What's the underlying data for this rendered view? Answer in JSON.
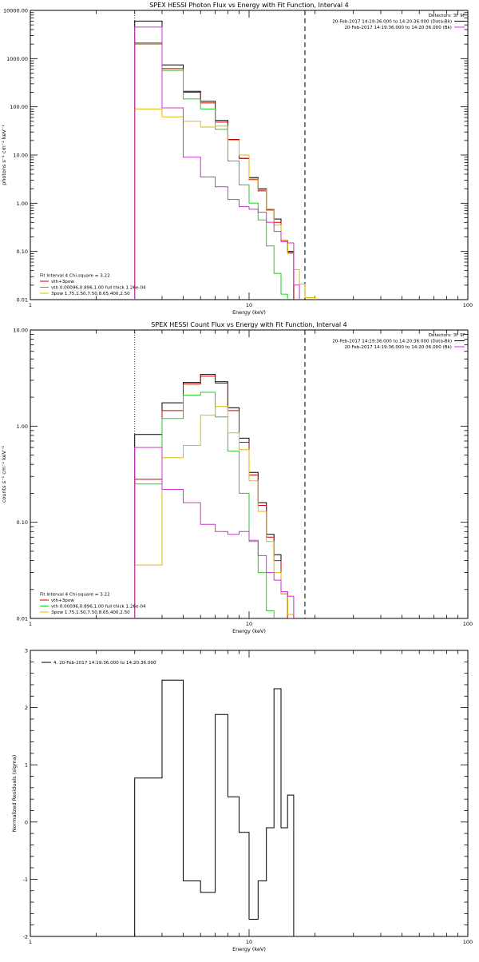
{
  "colors": {
    "axis": "#000000",
    "data": "#000000",
    "total_fit": "#cc0000",
    "vth": "#22cc22",
    "bpow": "#ddbb00",
    "background": "#cc33cc",
    "residual": "#000000"
  },
  "chart_data": [
    {
      "type": "line",
      "title": "SPEX HESSI Photon Flux vs Energy with Fit Function, Interval 4",
      "xlabel": "Energy (keV)",
      "ylabel": "photons s⁻¹ cm⁻² keV⁻¹",
      "xscale": "log",
      "yscale": "log",
      "xlim": [
        1,
        100
      ],
      "ylim": [
        0.01,
        10000
      ],
      "xticks": [
        {
          "v": 1,
          "label": "1"
        },
        {
          "v": 10,
          "label": "10"
        },
        {
          "v": 100,
          "label": "100"
        }
      ],
      "yticks": [
        {
          "v": 0.01,
          "label": "0.01"
        },
        {
          "v": 0.1,
          "label": "0.10"
        },
        {
          "v": 1,
          "label": "1.00"
        },
        {
          "v": 10,
          "label": "10.00"
        },
        {
          "v": 100,
          "label": "100.00"
        },
        {
          "v": 1000,
          "label": "1000.00"
        },
        {
          "v": 10000,
          "label": "10000.00"
        }
      ],
      "vlines": [
        {
          "x": 3.0,
          "style": "dotted"
        },
        {
          "x": 18.0,
          "style": "dashed"
        }
      ],
      "edges": [
        3,
        4,
        5,
        6,
        7,
        8,
        9,
        10,
        11,
        12,
        13,
        14,
        15,
        16,
        17,
        18,
        20,
        22,
        25
      ],
      "series": [
        {
          "key": "data",
          "color_key": "data",
          "values": [
            6000,
            740,
            210,
            130,
            52,
            21,
            8.5,
            3.4,
            2.0,
            0.75,
            0.47,
            0.17,
            0.1,
            null,
            null,
            null,
            null,
            null
          ]
        },
        {
          "key": "total",
          "color_key": "total_fit",
          "values": [
            2100,
            620,
            200,
            120,
            48,
            21,
            8.5,
            3.1,
            1.8,
            0.72,
            0.4,
            0.17,
            0.095,
            null,
            null,
            null,
            null,
            null
          ]
        },
        {
          "key": "vth",
          "color_key": "vth",
          "values": [
            2000,
            570,
            145,
            90,
            34,
            7.5,
            2.4,
            1.0,
            0.45,
            0.13,
            0.035,
            0.013,
            null,
            null,
            null,
            null,
            null,
            null
          ]
        },
        {
          "key": "bpow",
          "color_key": "bpow",
          "values": [
            90,
            62,
            50,
            38,
            40,
            20,
            10,
            3.2,
            1.9,
            0.75,
            0.35,
            0.17,
            0.09,
            0.042,
            0.021,
            0.011,
            null,
            null
          ]
        },
        {
          "key": "bk",
          "color_key": "background",
          "values": [
            4500,
            95,
            9,
            3.5,
            2.2,
            1.2,
            0.85,
            0.75,
            0.65,
            0.4,
            0.26,
            0.16,
            0.15,
            0.02,
            null,
            null,
            null,
            null
          ]
        }
      ],
      "legend_right": [
        {
          "text": "Detectors: 3F 9F",
          "color_key": null
        },
        {
          "text": "20-Feb-2017 14:19:36.000 to 14:20:36.000 (Data-Bk)",
          "color_key": "data"
        },
        {
          "text": "20-Feb-2017 14:19:36.000 to 14:20:36.000 (Bk)",
          "color_key": "background"
        }
      ],
      "legend_left": [
        {
          "text": "Fit Interval 4   Chi-square = 3.22",
          "color_key": null
        },
        {
          "text": "vth+3pow",
          "color_key": "total_fit"
        },
        {
          "text": "vth 0.00096,0.896,1.00  full thick 1.26e-04",
          "color_key": "vth"
        },
        {
          "text": "3pow 1.75,1.50,7.50,8.65,400,2.50",
          "color_key": "bpow"
        }
      ]
    },
    {
      "type": "line",
      "title": "SPEX HESSI Count Flux vs Energy with Fit Function, Interval 4",
      "xlabel": "Energy (keV)",
      "ylabel": "counts s⁻¹ cm⁻² keV⁻¹",
      "xscale": "log",
      "yscale": "log",
      "xlim": [
        1,
        100
      ],
      "ylim": [
        0.01,
        10
      ],
      "xticks": [
        {
          "v": 1,
          "label": "1"
        },
        {
          "v": 10,
          "label": "10"
        },
        {
          "v": 100,
          "label": "100"
        }
      ],
      "yticks": [
        {
          "v": 0.01,
          "label": "0.01"
        },
        {
          "v": 0.1,
          "label": "0.10"
        },
        {
          "v": 1,
          "label": "1.00"
        },
        {
          "v": 10,
          "label": "10.00"
        }
      ],
      "vlines": [
        {
          "x": 3.0,
          "style": "dotted"
        },
        {
          "x": 18.0,
          "style": "dashed"
        }
      ],
      "edges": [
        3,
        4,
        5,
        6,
        7,
        8,
        9,
        10,
        11,
        12,
        13,
        14,
        15,
        16,
        17,
        18
      ],
      "series": [
        {
          "key": "data",
          "color_key": "data",
          "values": [
            0.82,
            1.75,
            2.85,
            3.45,
            2.9,
            1.55,
            0.75,
            0.33,
            0.16,
            0.075,
            0.046,
            0.019,
            0.011,
            null,
            null
          ]
        },
        {
          "key": "total",
          "color_key": "total_fit",
          "values": [
            0.28,
            1.45,
            2.75,
            3.3,
            2.8,
            1.45,
            0.68,
            0.31,
            0.15,
            0.07,
            0.04,
            0.018,
            0.01,
            null,
            null
          ]
        },
        {
          "key": "vth",
          "color_key": "vth",
          "values": [
            0.25,
            1.2,
            2.1,
            2.25,
            1.25,
            0.55,
            0.2,
            0.063,
            0.03,
            0.012,
            null,
            null,
            null,
            null,
            null
          ]
        },
        {
          "key": "bpow",
          "color_key": "bpow",
          "values": [
            0.036,
            0.47,
            0.63,
            1.3,
            1.6,
            0.85,
            0.57,
            0.27,
            0.13,
            0.063,
            0.03,
            0.018,
            0.011,
            null,
            null
          ]
        },
        {
          "key": "bk",
          "color_key": "background",
          "values": [
            0.6,
            0.22,
            0.16,
            0.095,
            0.08,
            0.075,
            0.08,
            0.065,
            0.045,
            0.03,
            0.025,
            0.019,
            0.017,
            null,
            null
          ]
        }
      ],
      "legend_right": [
        {
          "text": "Detectors: 3F 9F",
          "color_key": null
        },
        {
          "text": "20-Feb-2017 14:19:36.000 to 14:20:36.000 (Data-Bk)",
          "color_key": "data"
        },
        {
          "text": "20-Feb-2017 14:19:36.000 to 14:20:36.000 (Bk)",
          "color_key": "background"
        }
      ],
      "legend_left": [
        {
          "text": "Fit Interval 4   Chi-square = 3.22",
          "color_key": null
        },
        {
          "text": "vth+3pow",
          "color_key": "total_fit"
        },
        {
          "text": "vth 0.00096,0.896,1.00  full thick 1.26e-04",
          "color_key": "vth"
        },
        {
          "text": "3pow 1.75,1.50,7.50,8.65,400,2.50",
          "color_key": "bpow"
        }
      ]
    },
    {
      "type": "line",
      "title": "",
      "xlabel": "Energy (keV)",
      "ylabel": "Normalized Residuals (sigma)",
      "xscale": "log",
      "yscale": "linear",
      "xlim": [
        1,
        100
      ],
      "ylim": [
        -2,
        3
      ],
      "xticks": [
        {
          "v": 1,
          "label": "1"
        },
        {
          "v": 10,
          "label": "10"
        },
        {
          "v": 100,
          "label": "100"
        }
      ],
      "yticks": [
        {
          "v": -2,
          "label": "-2"
        },
        {
          "v": -1,
          "label": "-1"
        },
        {
          "v": 0,
          "label": "0"
        },
        {
          "v": 1,
          "label": "1"
        },
        {
          "v": 2,
          "label": "2"
        },
        {
          "v": 3,
          "label": "3"
        }
      ],
      "vlines": [],
      "edges": [
        3,
        4,
        5,
        6,
        7,
        8,
        9,
        10,
        11,
        12,
        13,
        14,
        15,
        16,
        17,
        18
      ],
      "series": [
        {
          "key": "resid",
          "color_key": "residual",
          "values": [
            0.77,
            2.48,
            -1.03,
            -1.23,
            1.88,
            0.44,
            -0.18,
            -1.7,
            -1.03,
            -0.1,
            2.33,
            -0.1,
            0.47,
            null,
            null
          ]
        }
      ],
      "legend_right": [],
      "legend_left": [],
      "legend_top": [
        {
          "text": "4. 20-Feb-2017 14:19:36.000 to 14:20:36.000",
          "color_key": "residual"
        }
      ]
    }
  ]
}
